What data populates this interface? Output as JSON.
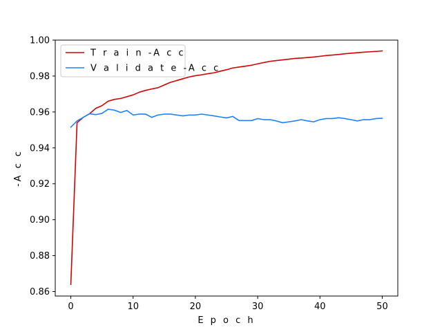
{
  "chart_data": {
    "type": "line",
    "xlabel": "E p o c h",
    "ylabel": "-A c c",
    "xlim": [
      -2.5,
      52.5
    ],
    "ylim": [
      0.8575,
      1.0
    ],
    "xticks": [
      0,
      10,
      20,
      30,
      40,
      50
    ],
    "xtick_labels": [
      "0",
      "10",
      "20",
      "30",
      "40",
      "50"
    ],
    "yticks": [
      0.86,
      0.88,
      0.9,
      0.92,
      0.94,
      0.96,
      0.98,
      1.0
    ],
    "ytick_labels": [
      "0.86",
      "0.88",
      "0.90",
      "0.92",
      "0.94",
      "0.96",
      "0.98",
      "1.00"
    ],
    "grid": false,
    "legend_position": "top-left",
    "x": [
      0,
      1,
      2,
      3,
      4,
      5,
      6,
      7,
      8,
      9,
      10,
      11,
      12,
      13,
      14,
      15,
      16,
      17,
      18,
      19,
      20,
      21,
      22,
      23,
      24,
      25,
      26,
      27,
      28,
      29,
      30,
      31,
      32,
      33,
      34,
      35,
      36,
      37,
      38,
      39,
      40,
      41,
      42,
      43,
      44,
      45,
      46,
      47,
      48,
      49,
      50
    ],
    "series": [
      {
        "name": "T r a i n -A c c",
        "color": "#d40000",
        "values": [
          0.864,
          0.954,
          0.957,
          0.959,
          0.962,
          0.9635,
          0.966,
          0.967,
          0.9675,
          0.9685,
          0.9695,
          0.971,
          0.972,
          0.9728,
          0.9735,
          0.975,
          0.9765,
          0.9775,
          0.9785,
          0.9795,
          0.9802,
          0.9807,
          0.9813,
          0.9818,
          0.9827,
          0.9835,
          0.9845,
          0.985,
          0.9855,
          0.986,
          0.9868,
          0.9875,
          0.9882,
          0.9886,
          0.989,
          0.9894,
          0.9898,
          0.99,
          0.9903,
          0.9906,
          0.991,
          0.9914,
          0.9917,
          0.992,
          0.9924,
          0.9927,
          0.993,
          0.9933,
          0.9935,
          0.9937,
          0.994
        ]
      },
      {
        "name": "V a l i d a t e -A c c",
        "color": "#1a80ff",
        "values": [
          0.9515,
          0.955,
          0.957,
          0.959,
          0.9585,
          0.9592,
          0.9615,
          0.961,
          0.9597,
          0.9608,
          0.9583,
          0.9588,
          0.9588,
          0.957,
          0.9583,
          0.9588,
          0.9588,
          0.9583,
          0.9578,
          0.9583,
          0.9583,
          0.9588,
          0.9583,
          0.9578,
          0.9572,
          0.9567,
          0.9575,
          0.9552,
          0.9552,
          0.9552,
          0.9563,
          0.9557,
          0.9557,
          0.955,
          0.954,
          0.9545,
          0.955,
          0.9557,
          0.955,
          0.9545,
          0.9557,
          0.9563,
          0.9563,
          0.9568,
          0.9563,
          0.9557,
          0.955,
          0.9557,
          0.9557,
          0.9563,
          0.9565
        ]
      }
    ]
  }
}
